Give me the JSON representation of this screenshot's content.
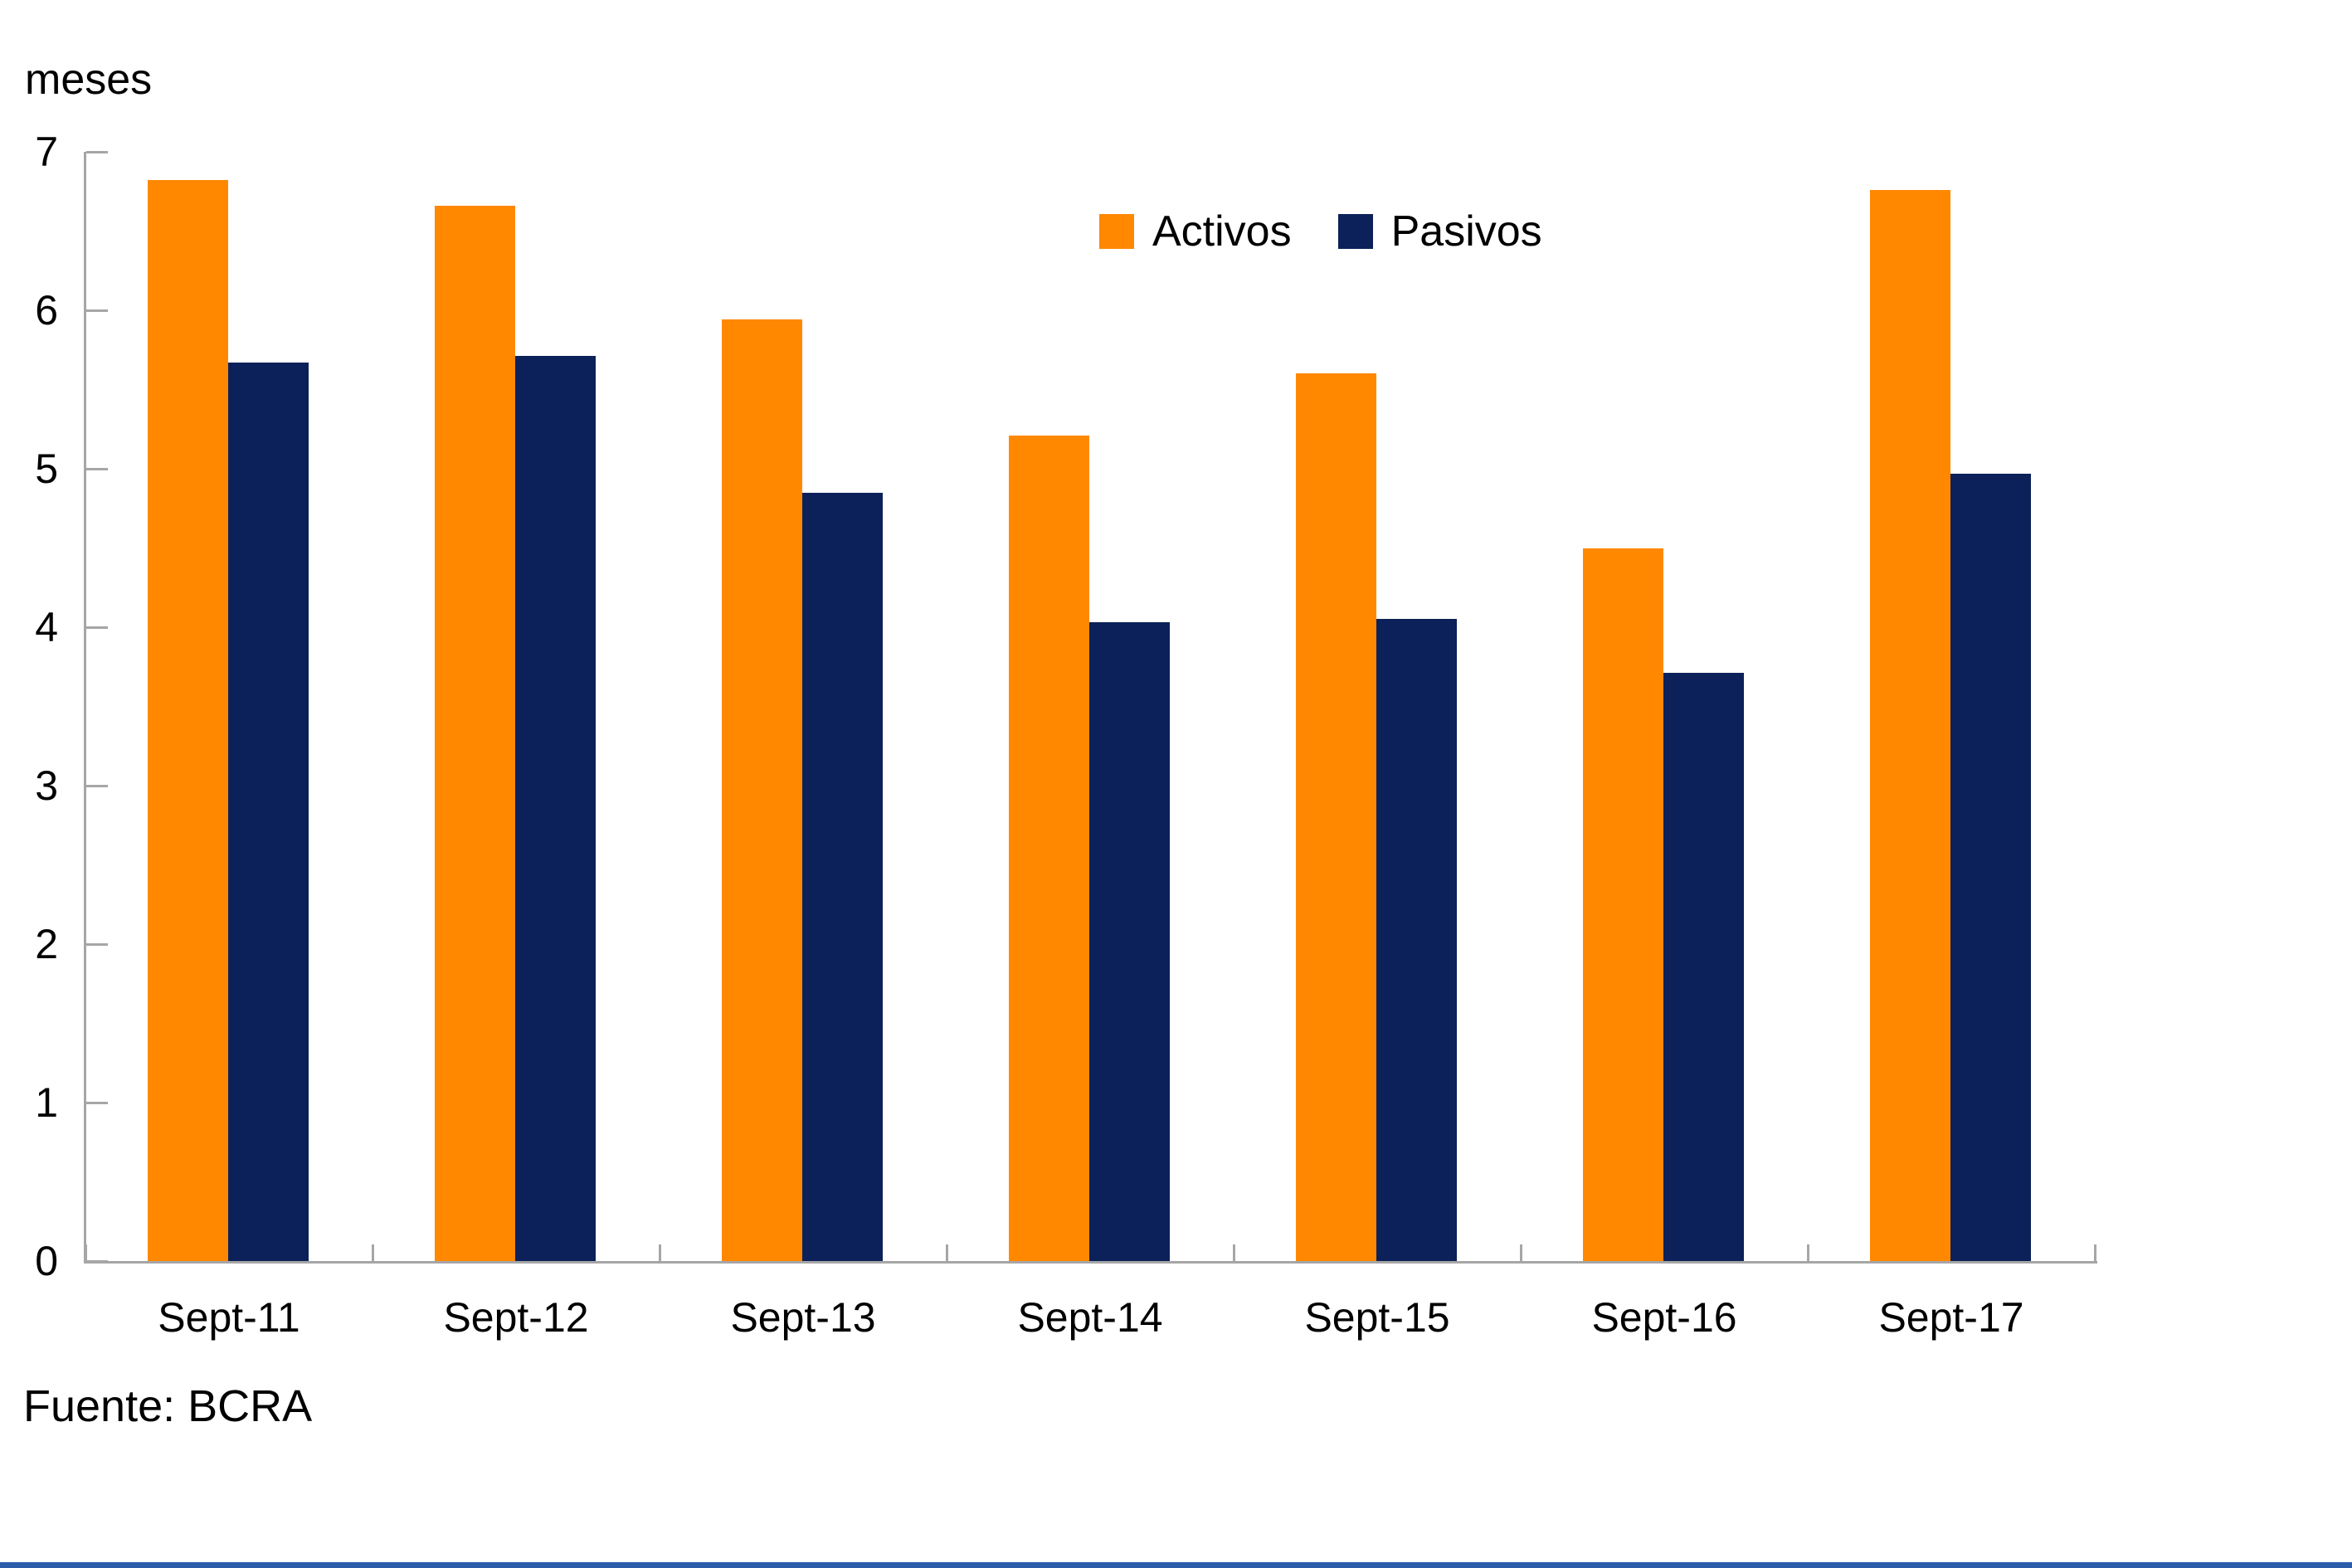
{
  "page": {
    "background": "#ffffff",
    "bottom_rule_color": "#2a5caa"
  },
  "axis": {
    "line_color": "#a6a6a6",
    "unit_label": "meses"
  },
  "legend": {
    "position": "top-center",
    "items": [
      "Activos",
      "Pasivos"
    ]
  },
  "source": {
    "text": "Fuente: BCRA"
  },
  "chart_data": {
    "type": "bar",
    "title": "",
    "unit_label": "meses",
    "categories": [
      "Sept-11",
      "Sept-12",
      "Sept-13",
      "Sept-14",
      "Sept-15",
      "Sept-16",
      "Sept-17"
    ],
    "series": [
      {
        "name": "Activos",
        "color": "#ff8800",
        "values": [
          6.82,
          6.66,
          5.94,
          5.21,
          5.6,
          4.5,
          6.76
        ]
      },
      {
        "name": "Pasivos",
        "color": "#0c2159",
        "values": [
          5.67,
          5.71,
          4.85,
          4.03,
          4.05,
          3.71,
          4.97
        ]
      }
    ],
    "xlabel": "",
    "ylabel": "meses",
    "ylim": [
      0,
      7
    ],
    "yticks": [
      0,
      1,
      2,
      3,
      4,
      5,
      6,
      7
    ],
    "grid": false,
    "legend_position": "top-center",
    "source": "Fuente: BCRA"
  }
}
